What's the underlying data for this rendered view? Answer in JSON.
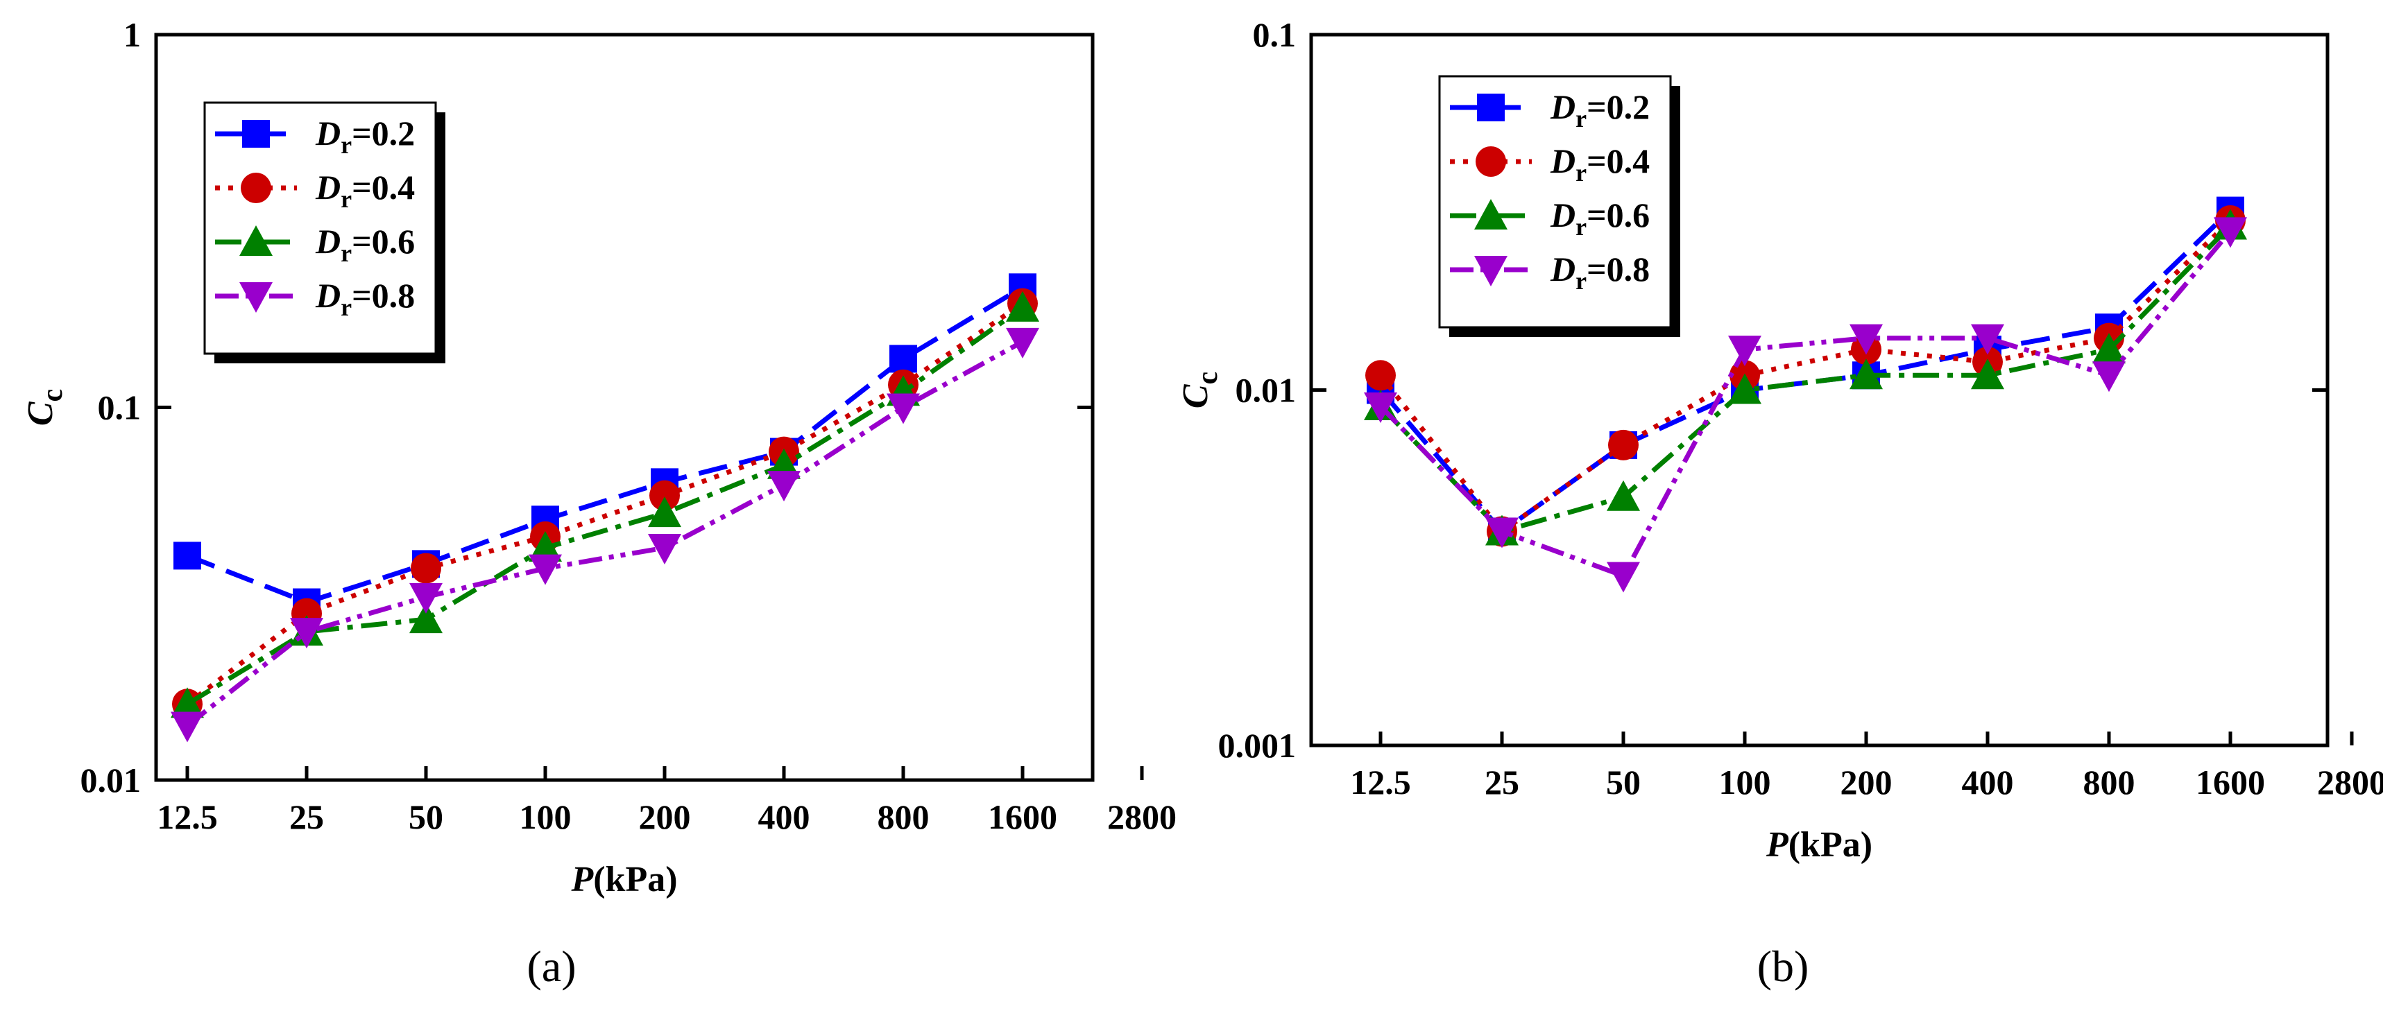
{
  "chart_data": [
    {
      "type": "line",
      "panel_caption": "(a)",
      "xlabel": {
        "italic": "P",
        "rest": "(kPa)"
      },
      "ylabel": {
        "main": "C",
        "sub": "c"
      },
      "yscale": "log",
      "ylim": [
        0.01,
        1
      ],
      "y_ticks": [
        0.01,
        0.1,
        1
      ],
      "y_tick_labels": [
        "0.01",
        "0.1",
        "1"
      ],
      "x_tick_labels": [
        "12.5",
        "25",
        "50",
        "100",
        "200",
        "400",
        "800",
        "1600",
        "2800"
      ],
      "categories": [
        "12.5",
        "25",
        "50",
        "100",
        "200",
        "400",
        "800",
        "1600"
      ],
      "legend_position": "top-left",
      "series": [
        {
          "name": "Dr=0.2",
          "label_main": "D",
          "label_sub": "r",
          "label_value": "=0.2",
          "color": "#0000ff",
          "marker": "square",
          "dash": "dashed",
          "values": [
            0.04,
            0.03,
            0.038,
            0.05,
            0.063,
            0.076,
            0.135,
            0.21
          ]
        },
        {
          "name": "Dr=0.4",
          "label_main": "D",
          "label_sub": "r",
          "label_value": "=0.4",
          "color": "#cc0000",
          "marker": "circle",
          "dash": "dotted",
          "values": [
            0.016,
            0.028,
            0.037,
            0.045,
            0.058,
            0.076,
            0.115,
            0.19
          ]
        },
        {
          "name": "Dr=0.6",
          "label_main": "D",
          "label_sub": "r",
          "label_value": "=0.6",
          "color": "#008000",
          "marker": "triangle-up",
          "dash": "dash-dot",
          "values": [
            0.016,
            0.025,
            0.027,
            0.042,
            0.052,
            0.07,
            0.11,
            0.185
          ]
        },
        {
          "name": "Dr=0.8",
          "label_main": "D",
          "label_sub": "r",
          "label_value": "=0.8",
          "color": "#9900cc",
          "marker": "triangle-down",
          "dash": "dash-dot-dot",
          "values": [
            0.014,
            0.025,
            0.031,
            0.037,
            0.042,
            0.062,
            0.1,
            0.15
          ]
        }
      ]
    },
    {
      "type": "line",
      "panel_caption": "(b)",
      "xlabel": {
        "italic": "P",
        "rest": "(kPa)"
      },
      "ylabel": {
        "main": "C",
        "sub": "c"
      },
      "yscale": "log",
      "ylim": [
        0.001,
        0.1
      ],
      "y_ticks": [
        0.001,
        0.01,
        0.1
      ],
      "y_tick_labels": [
        "0.001",
        "0.01",
        "0.1"
      ],
      "x_tick_labels": [
        "12.5",
        "25",
        "50",
        "100",
        "200",
        "400",
        "800",
        "1600",
        "2800"
      ],
      "categories": [
        "12.5",
        "25",
        "50",
        "100",
        "200",
        "400",
        "800",
        "1600"
      ],
      "legend_position": "top-left",
      "series": [
        {
          "name": "Dr=0.2",
          "label_main": "D",
          "label_sub": "r",
          "label_value": "=0.2",
          "color": "#0000ff",
          "marker": "square",
          "dash": "dashed",
          "values": [
            0.01,
            0.004,
            0.007,
            0.01,
            0.011,
            0.013,
            0.015,
            0.032
          ]
        },
        {
          "name": "Dr=0.4",
          "label_main": "D",
          "label_sub": "r",
          "label_value": "=0.4",
          "color": "#cc0000",
          "marker": "circle",
          "dash": "dotted",
          "values": [
            0.011,
            0.004,
            0.007,
            0.011,
            0.013,
            0.012,
            0.014,
            0.03
          ]
        },
        {
          "name": "Dr=0.6",
          "label_main": "D",
          "label_sub": "r",
          "label_value": "=0.6",
          "color": "#008000",
          "marker": "triangle-up",
          "dash": "dash-dot",
          "values": [
            0.009,
            0.004,
            0.005,
            0.01,
            0.011,
            0.011,
            0.013,
            0.029
          ]
        },
        {
          "name": "Dr=0.8",
          "label_main": "D",
          "label_sub": "r",
          "label_value": "=0.8",
          "color": "#9900cc",
          "marker": "triangle-down",
          "dash": "dash-dot-dot",
          "values": [
            0.009,
            0.004,
            0.003,
            0.013,
            0.014,
            0.014,
            0.011,
            0.028
          ]
        }
      ]
    }
  ]
}
